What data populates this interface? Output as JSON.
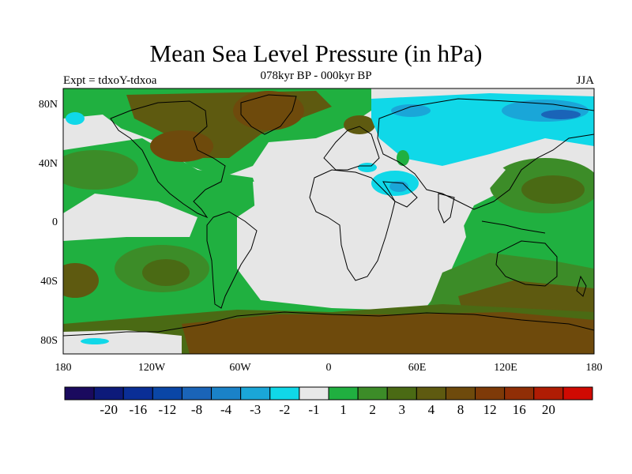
{
  "title": "Mean Sea Level Pressure (in hPa)",
  "subtitle": "078kyr BP - 000kyr BP",
  "left_label": "Expt = tdxoY-tdxoa",
  "right_label": "JJA",
  "lon_ticks": [
    "180",
    "120W",
    "60W",
    "0",
    "60E",
    "120E",
    "180"
  ],
  "lat_ticks": [
    "80N",
    "40N",
    "0",
    "40S",
    "80S"
  ],
  "colorbar": {
    "colors": [
      "#1a0a5e",
      "#0d1a7a",
      "#0a2e96",
      "#0a46a6",
      "#1a64b8",
      "#1a82c8",
      "#1aa6d8",
      "#10d8e8",
      "#e8e8e8",
      "#20b040",
      "#3c8c28",
      "#4a6a14",
      "#5e5a10",
      "#6e4a0c",
      "#7e3a08",
      "#902e06",
      "#b01c04",
      "#d00a02"
    ],
    "labels": [
      "-20",
      "-16",
      "-12",
      "-8",
      "-4",
      "-3",
      "-2",
      "-1",
      "1",
      "2",
      "3",
      "4",
      "8",
      "12",
      "16",
      "20"
    ]
  },
  "colors": {
    "neutral": "#e6e6e6",
    "green_light": "#20b040",
    "green_mid": "#3c8c28",
    "green_dark": "#4a6a14",
    "brown": "#5e5a10",
    "brown_dark": "#6e4a0c",
    "cyan": "#10d8e8",
    "blue": "#1aa6d8",
    "blue_dark": "#1a64b8"
  }
}
